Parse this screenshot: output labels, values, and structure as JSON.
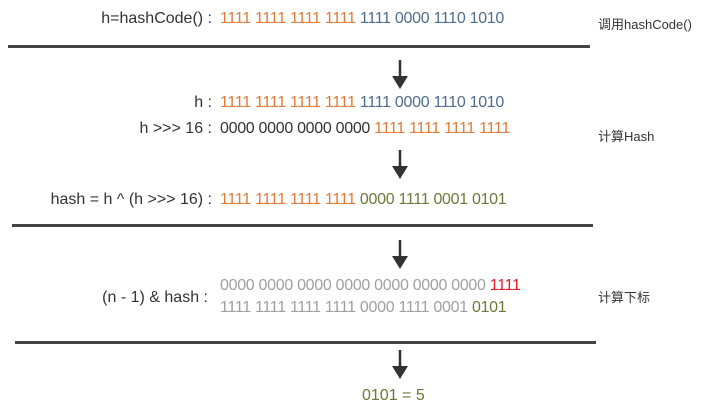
{
  "colors": {
    "orange": "#e07b39",
    "blue": "#4f6d8c",
    "olive": "#6b7a3a",
    "dark": "#333333",
    "gray": "#a0a0a0",
    "red": "#e0202a"
  },
  "rows": [
    {
      "label": "h=hashCode() :",
      "segments": [
        {
          "text": "1111 1111 1111 1111 ",
          "color": "orange"
        },
        {
          "text": "1111 0000 1110 1010",
          "color": "blue"
        }
      ]
    },
    {
      "label": "h :",
      "segments": [
        {
          "text": "1111 1111 1111 1111 ",
          "color": "orange"
        },
        {
          "text": "1111 0000 1110 1010",
          "color": "blue"
        }
      ]
    },
    {
      "label": "h >>> 16 :",
      "segments": [
        {
          "text": "0000 0000 0000 0000 ",
          "color": "dark"
        },
        {
          "text": "1111 1111 1111 1111",
          "color": "orange"
        }
      ]
    },
    {
      "label": "hash = h ^ (h >>> 16) :",
      "segments": [
        {
          "text": "1111 1111 1111 1111 ",
          "color": "orange"
        },
        {
          "text": "0000 1111 0001 0101",
          "color": "olive"
        }
      ]
    },
    {
      "label": "(n  -  1) & hash :",
      "segments": [
        {
          "text": "0000 0000 0000 0000 0000 0000 0000 ",
          "color": "gray"
        },
        {
          "text": "1111",
          "color": "red"
        }
      ]
    },
    {
      "label": "",
      "segments": [
        {
          "text": "1111 1111 1111 1111 0000 1111 0001 ",
          "color": "gray"
        },
        {
          "text": "0101",
          "color": "olive"
        }
      ]
    }
  ],
  "side_labels": [
    "调用hashCode()",
    "计算Hash",
    "计算下标"
  ],
  "result": "0101 = 5"
}
